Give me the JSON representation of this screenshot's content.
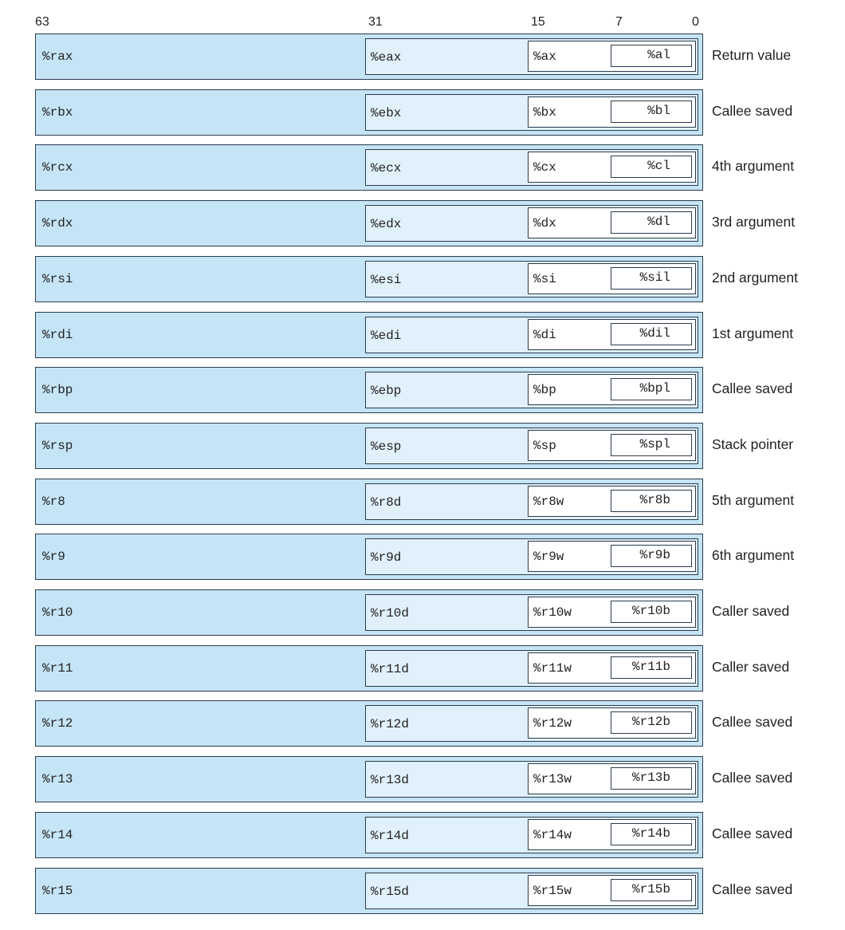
{
  "bit_labels": {
    "b63": "63",
    "b31": "31",
    "b15": "15",
    "b7": "7",
    "b0": "0"
  },
  "colors": {
    "reg64": "#c5e5f7",
    "reg32": "#e0f1fc",
    "reg16": "#ffffff",
    "border": "#2b3b4b"
  },
  "registers": [
    {
      "r64": "%rax",
      "r32": "%eax",
      "r16": "%ax",
      "r8": "%al",
      "use": "Return value"
    },
    {
      "r64": "%rbx",
      "r32": "%ebx",
      "r16": "%bx",
      "r8": "%bl",
      "use": "Callee saved"
    },
    {
      "r64": "%rcx",
      "r32": "%ecx",
      "r16": "%cx",
      "r8": "%cl",
      "use": "4th argument"
    },
    {
      "r64": "%rdx",
      "r32": "%edx",
      "r16": "%dx",
      "r8": "%dl",
      "use": "3rd argument"
    },
    {
      "r64": "%rsi",
      "r32": "%esi",
      "r16": "%si",
      "r8": "%sil",
      "use": "2nd argument"
    },
    {
      "r64": "%rdi",
      "r32": "%edi",
      "r16": "%di",
      "r8": "%dil",
      "use": "1st argument"
    },
    {
      "r64": "%rbp",
      "r32": "%ebp",
      "r16": "%bp",
      "r8": "%bpl",
      "use": "Callee saved"
    },
    {
      "r64": "%rsp",
      "r32": "%esp",
      "r16": "%sp",
      "r8": "%spl",
      "use": "Stack pointer"
    },
    {
      "r64": "%r8",
      "r32": "%r8d",
      "r16": "%r8w",
      "r8": "%r8b",
      "use": "5th argument"
    },
    {
      "r64": "%r9",
      "r32": "%r9d",
      "r16": "%r9w",
      "r8": "%r9b",
      "use": "6th argument"
    },
    {
      "r64": "%r10",
      "r32": "%r10d",
      "r16": "%r10w",
      "r8": "%r10b",
      "use": "Caller saved"
    },
    {
      "r64": "%r11",
      "r32": "%r11d",
      "r16": "%r11w",
      "r8": "%r11b",
      "use": "Caller saved"
    },
    {
      "r64": "%r12",
      "r32": "%r12d",
      "r16": "%r12w",
      "r8": "%r12b",
      "use": "Callee saved"
    },
    {
      "r64": "%r13",
      "r32": "%r13d",
      "r16": "%r13w",
      "r8": "%r13b",
      "use": "Callee saved"
    },
    {
      "r64": "%r14",
      "r32": "%r14d",
      "r16": "%r14w",
      "r8": "%r14b",
      "use": "Callee saved"
    },
    {
      "r64": "%r15",
      "r32": "%r15d",
      "r16": "%r15w",
      "r8": "%r15b",
      "use": "Callee saved"
    }
  ]
}
